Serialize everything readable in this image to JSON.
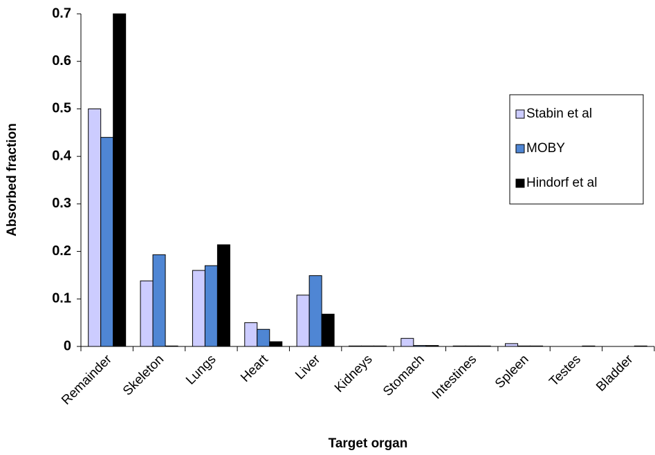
{
  "chart_data": {
    "type": "bar",
    "xlabel": "Target organ",
    "ylabel": "Absorbed fraction",
    "categories": [
      "Remainder",
      "Skeleton",
      "Lungs",
      "Heart",
      "Liver",
      "Kidneys",
      "Stomach",
      "Intestines",
      "Spleen",
      "Testes",
      "Bladder"
    ],
    "series": [
      {
        "name": "Stabin et al",
        "color": "#ccccff",
        "values": [
          0.5,
          0.138,
          0.16,
          0.05,
          0.108,
          0.001,
          0.017,
          0.001,
          0.006,
          0,
          0
        ]
      },
      {
        "name": "MOBY",
        "color": "#4f86d4",
        "values": [
          0.44,
          0.193,
          0.17,
          0.036,
          0.149,
          0.001,
          0.002,
          0.001,
          0.001,
          0,
          0
        ]
      },
      {
        "name": "Hindorf et al",
        "color": "#000000",
        "values": [
          0.7,
          0.001,
          0.214,
          0.01,
          0.068,
          0.001,
          0.002,
          0.001,
          0.001,
          0.001,
          0.001
        ]
      }
    ],
    "ylim": [
      0,
      0.7
    ],
    "yticks": [
      0,
      0.1,
      0.2,
      0.3,
      0.4,
      0.5,
      0.6,
      0.7
    ],
    "legend": "right"
  }
}
